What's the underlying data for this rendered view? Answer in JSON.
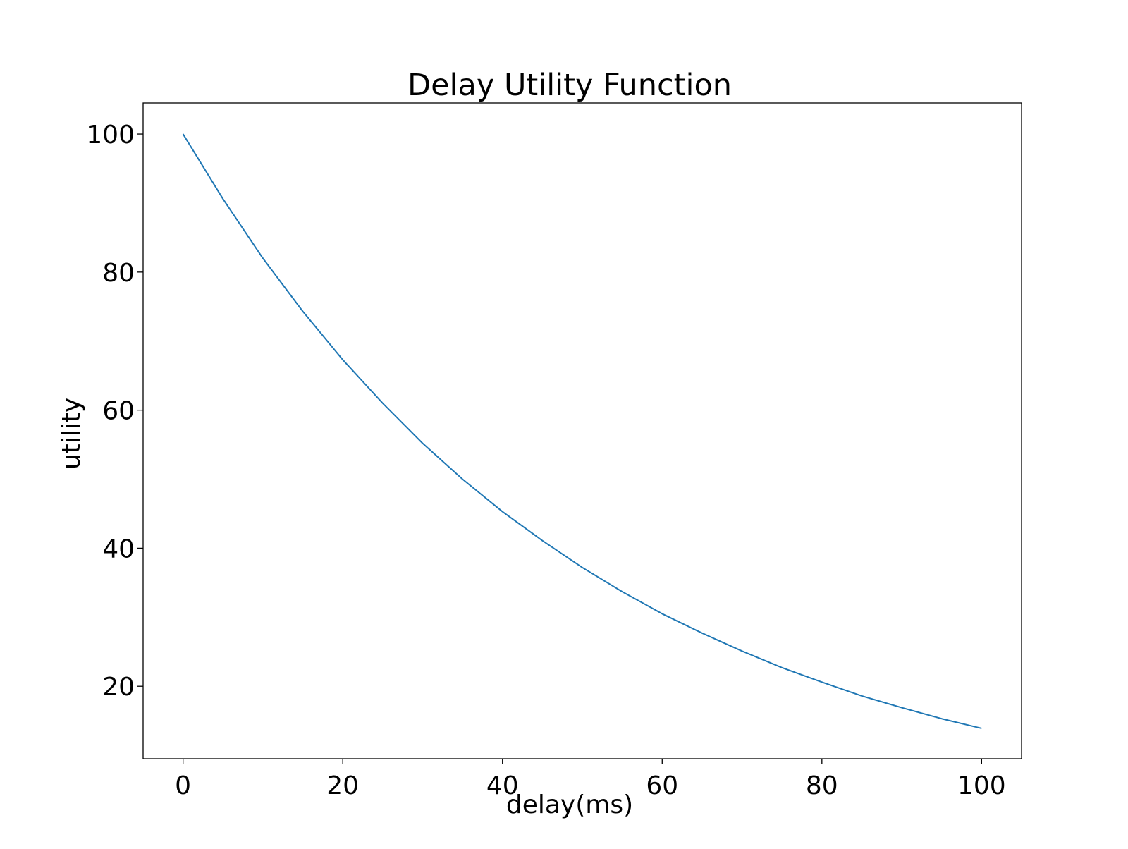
{
  "chart_data": {
    "type": "line",
    "title": "Delay Utility Function",
    "xlabel": "delay(ms)",
    "ylabel": "utility",
    "xlim": [
      -5,
      105
    ],
    "ylim": [
      9.5,
      104.5
    ],
    "xticks": [
      0,
      20,
      40,
      60,
      80,
      100
    ],
    "yticks": [
      20,
      40,
      60,
      80,
      100
    ],
    "xtick_labels": [
      "0",
      "20",
      "40",
      "60",
      "80",
      "100"
    ],
    "ytick_labels": [
      "20",
      "40",
      "60",
      "80",
      "100"
    ],
    "grid": false,
    "line_color": "#1f77b4",
    "series": [
      {
        "x": [
          0,
          5,
          10,
          15,
          20,
          25,
          30,
          35,
          40,
          45,
          50,
          55,
          60,
          65,
          70,
          75,
          80,
          85,
          90,
          95,
          100
        ],
        "y": [
          100.0,
          90.6,
          82.0,
          74.3,
          67.3,
          61.0,
          55.2,
          50.0,
          45.3,
          41.1,
          37.2,
          33.7,
          30.5,
          27.7,
          25.1,
          22.7,
          20.6,
          18.6,
          16.9,
          15.3,
          13.9
        ]
      }
    ]
  }
}
